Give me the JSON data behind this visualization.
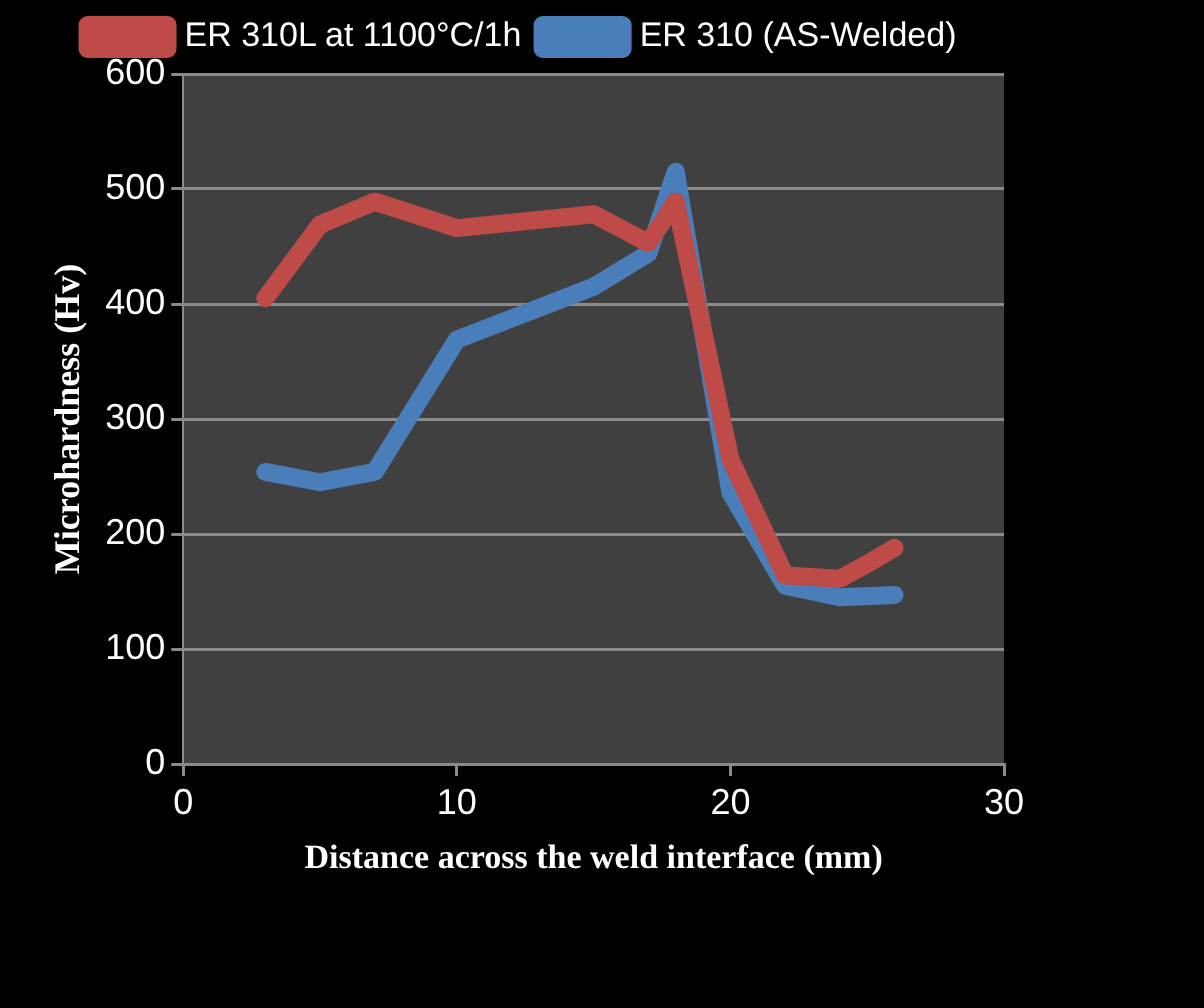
{
  "chart_data": {
    "type": "line",
    "xlabel": "Distance across the weld interface (mm)",
    "ylabel": "Microhardness (Hv)",
    "series": [
      {
        "name": "ER 310 (AS-Welded)",
        "color": "#4a7ebb",
        "x": [
          3,
          5,
          7,
          10,
          15,
          17,
          18,
          20,
          22,
          24,
          26
        ],
        "values": [
          254,
          245,
          254,
          369,
          415,
          444,
          515,
          236,
          155,
          145,
          147
        ]
      },
      {
        "name": "ER 310L at 1100°C/1h",
        "color": "#be4b48",
        "x": [
          3,
          5,
          7,
          10,
          15,
          17,
          18,
          20,
          22,
          24,
          25,
          26
        ],
        "values": [
          405,
          469,
          489,
          466,
          478,
          453,
          489,
          265,
          164,
          161,
          174,
          188
        ]
      }
    ],
    "xlim": [
      0,
      30
    ],
    "xticks": [
      0,
      10,
      20,
      30
    ],
    "ylim": [
      0,
      600
    ],
    "yticks": [
      0,
      100,
      200,
      300,
      400,
      500,
      600
    ],
    "grid": "y",
    "legend": "top"
  }
}
